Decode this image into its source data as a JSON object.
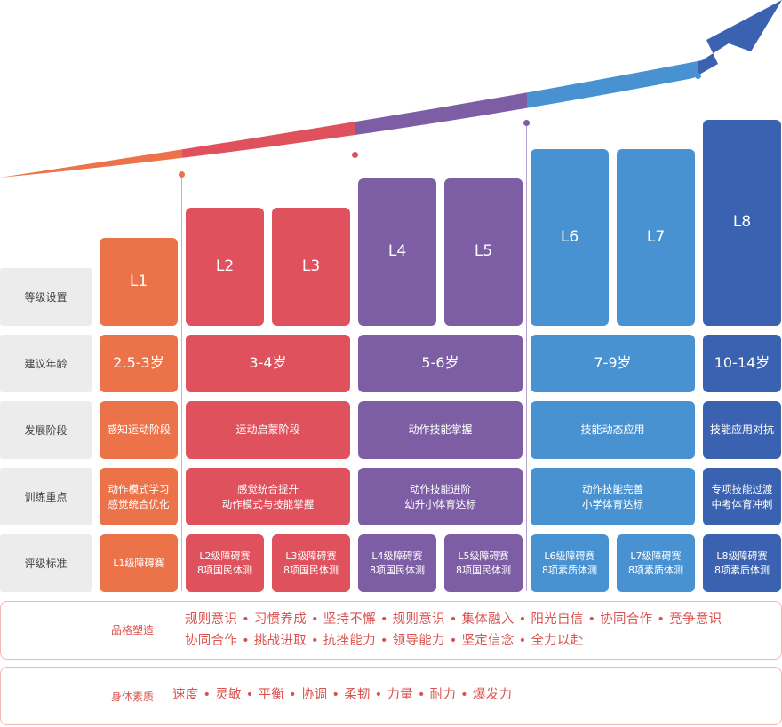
{
  "colors": {
    "L1": "#ec7249",
    "L2": "#df515c",
    "L3": "#df515c",
    "L4": "#7d5ea5",
    "L5": "#7d5ea5",
    "L6": "#4892d1",
    "L7": "#4892d1",
    "L8": "#3b62b0",
    "label_bg": "#ececec",
    "band_border": "#f0b7b7",
    "band_text": "#d9534f"
  },
  "row_labels": [
    "等级设置",
    "建议年龄",
    "发展阶段",
    "训练重点",
    "评级标准"
  ],
  "levels": [
    "L1",
    "L2",
    "L3",
    "L4",
    "L5",
    "L6",
    "L7",
    "L8"
  ],
  "groups": [
    {
      "age": "2.5-3岁",
      "stage": "感知运动阶段",
      "focus": "动作模式学习\n感觉统合优化"
    },
    {
      "age": "3-4岁",
      "stage": "运动启蒙阶段",
      "focus": "感觉统合提升\n动作模式与技能掌握"
    },
    {
      "age": "5-6岁",
      "stage": "动作技能掌握",
      "focus": "动作技能进阶\n幼升小体育达标"
    },
    {
      "age": "7-9岁",
      "stage": "技能动态应用",
      "focus": "动作技能完善\n小学体育达标"
    },
    {
      "age": "10-14岁",
      "stage": "技能应用对抗",
      "focus": "专项技能过渡\n中考体育冲刺"
    }
  ],
  "standards": [
    "L1级障碍赛",
    "L2级障碍赛\n8项国民体测",
    "L3级障碍赛\n8项国民体测",
    "L4级障碍赛\n8项国民体测",
    "L5级障碍赛\n8项国民体测",
    "L6级障碍赛\n8项素质体测",
    "L7级障碍赛\n8项素质体测",
    "L8级障碍赛\n8项素质体测"
  ],
  "character": {
    "title": "品格塑造",
    "line1": "规则意识 • 习惯养成 • 坚持不懈 • 规则意识 • 集体融入 • 阳光自信 • 协同合作 • 竞争意识",
    "line2": "协同合作 • 挑战进取 • 抗挫能力 • 领导能力 • 坚定信念 • 全力以赴"
  },
  "physical": {
    "title": "身体素质",
    "line1": "速度 • 灵敏 • 平衡 • 协调 • 柔韧 • 力量 • 耐力 • 爆发力"
  }
}
